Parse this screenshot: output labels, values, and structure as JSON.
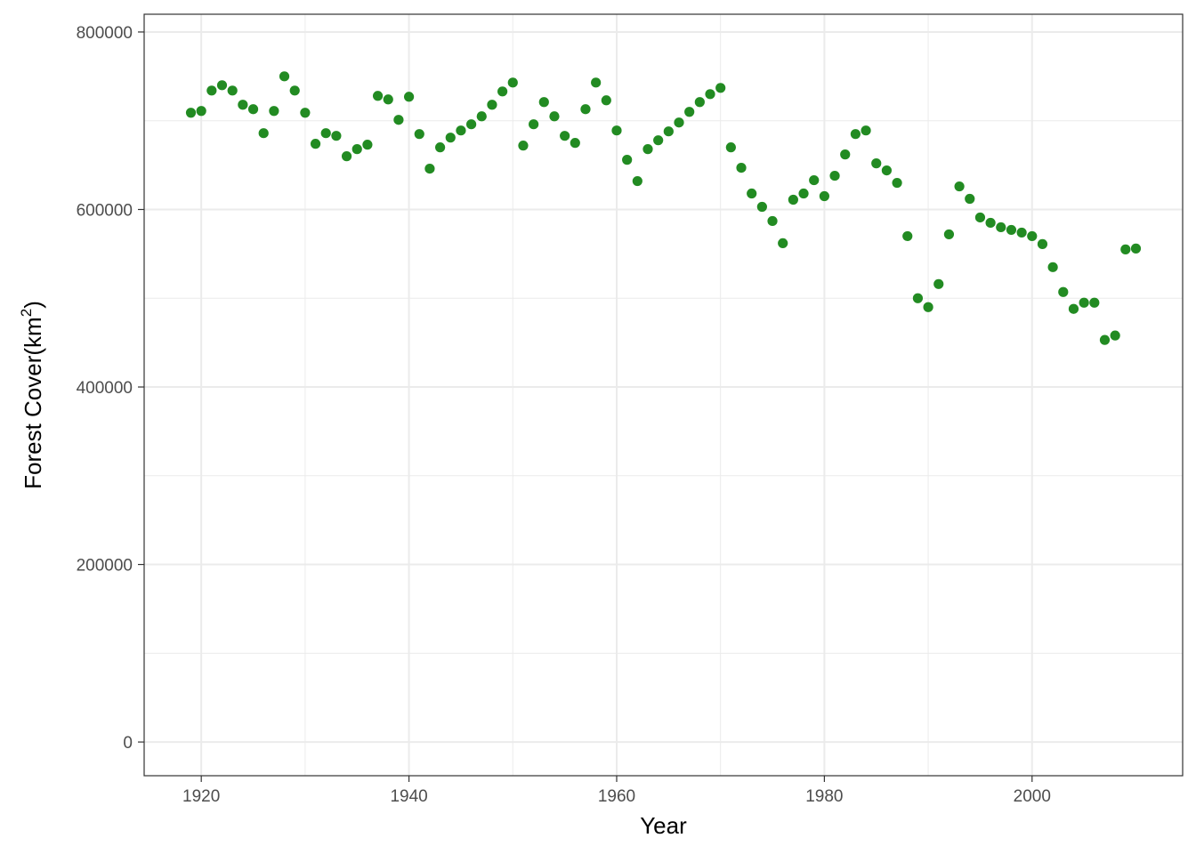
{
  "chart_data": {
    "type": "scatter",
    "title": "",
    "xlabel": "Year",
    "ylabel": {
      "prefix": "Forest Cover",
      "open": "(",
      "unit": "km",
      "superscript": "2",
      "close": ")"
    },
    "xlim": [
      1914.5,
      2014.5
    ],
    "ylim": [
      -38000,
      820000
    ],
    "x_ticks": [
      1920,
      1940,
      1960,
      1980,
      2000
    ],
    "x_tick_labels": [
      "1920",
      "1940",
      "1960",
      "1980",
      "2000"
    ],
    "y_ticks": [
      0,
      200000,
      400000,
      600000,
      800000
    ],
    "y_tick_labels": [
      "0",
      "200000",
      "400000",
      "600000",
      "800000"
    ],
    "grid": true,
    "point_color": "#228b22",
    "series": [
      {
        "x": [
          1919,
          1920,
          1921,
          1922,
          1923,
          1924,
          1925,
          1926,
          1927,
          1928,
          1929,
          1930,
          1931,
          1932,
          1933,
          1934,
          1935,
          1936,
          1937,
          1938,
          1939,
          1940,
          1941,
          1942,
          1943,
          1944,
          1945,
          1946,
          1947,
          1948,
          1949,
          1950,
          1951,
          1952,
          1953,
          1954,
          1955,
          1956,
          1957,
          1958,
          1959,
          1960,
          1961,
          1962,
          1963,
          1964,
          1965,
          1966,
          1967,
          1968,
          1969,
          1970,
          1971,
          1972,
          1973,
          1974,
          1975,
          1976,
          1977,
          1978,
          1979,
          1980,
          1981,
          1982,
          1983,
          1984,
          1985,
          1986,
          1987,
          1988,
          1989,
          1990,
          1991,
          1992,
          1993,
          1994,
          1995,
          1996,
          1997,
          1998,
          1999,
          2000,
          2001,
          2002,
          2003,
          2004,
          2005,
          2006,
          2007,
          2008,
          2009,
          2010
        ],
        "y": [
          709000,
          711000,
          734000,
          740000,
          734000,
          718000,
          713000,
          686000,
          711000,
          750000,
          734000,
          709000,
          674000,
          686000,
          683000,
          660000,
          668000,
          673000,
          728000,
          724000,
          701000,
          727000,
          685000,
          646000,
          670000,
          681000,
          689000,
          696000,
          705000,
          718000,
          733000,
          743000,
          672000,
          696000,
          721000,
          705000,
          683000,
          675000,
          713000,
          743000,
          723000,
          689000,
          656000,
          632000,
          668000,
          678000,
          688000,
          698000,
          710000,
          721000,
          730000,
          737000,
          670000,
          647000,
          618000,
          603000,
          587000,
          562000,
          611000,
          618000,
          633000,
          615000,
          638000,
          662000,
          685000,
          689000,
          652000,
          644000,
          630000,
          570000,
          500000,
          490000,
          516000,
          572000,
          626000,
          612000,
          591000,
          585000,
          580000,
          577000,
          574000,
          570000,
          561000,
          535000,
          507000,
          488000,
          495000,
          495000,
          453000,
          458000,
          555000,
          556000
        ]
      }
    ]
  }
}
